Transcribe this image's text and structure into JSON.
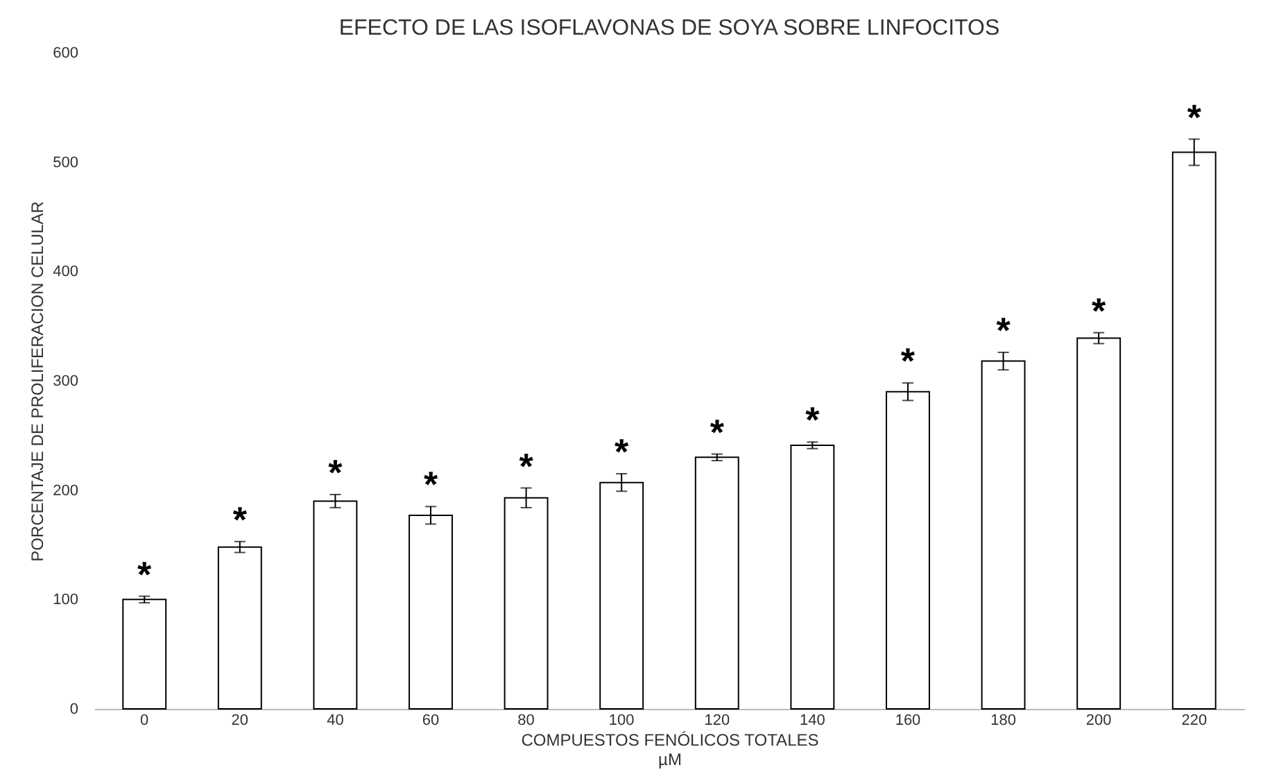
{
  "chart_data": {
    "type": "bar",
    "title": "EFECTO DE LAS ISOFLAVONAS DE SOYA SOBRE LINFOCITOS",
    "xlabel": "COMPUESTOS FENÓLICOS TOTALES\nµM",
    "ylabel": "PORCENTAJE DE PROLIFERACION  CELULAR",
    "categories": [
      "0",
      "20",
      "40",
      "60",
      "80",
      "100",
      "120",
      "140",
      "160",
      "180",
      "200",
      "220"
    ],
    "values": [
      100,
      148,
      190,
      177,
      193,
      207,
      230,
      241,
      290,
      318,
      339,
      509
    ],
    "errors": [
      3,
      5,
      6,
      8,
      9,
      8,
      3,
      3,
      8,
      8,
      5,
      12
    ],
    "color": "#ffffff",
    "ylim": [
      0,
      600
    ],
    "yticks": [
      0,
      100,
      200,
      300,
      400,
      500,
      600
    ],
    "grid": false,
    "annotations": [
      {
        "text": "*",
        "x": "0",
        "y": 103
      },
      {
        "text": "*",
        "x": "20",
        "y": 153
      },
      {
        "text": "*",
        "x": "40",
        "y": 196
      },
      {
        "text": "*",
        "x": "60",
        "y": 185
      },
      {
        "text": "*",
        "x": "80",
        "y": 202
      },
      {
        "text": "*",
        "x": "100",
        "y": 215
      },
      {
        "text": "*",
        "x": "120",
        "y": 233
      },
      {
        "text": "*",
        "x": "140",
        "y": 244
      },
      {
        "text": "*",
        "x": "160",
        "y": 298
      },
      {
        "text": "*",
        "x": "180",
        "y": 326
      },
      {
        "text": "*",
        "x": "200",
        "y": 344
      },
      {
        "text": "*",
        "x": "220",
        "y": 521
      }
    ]
  }
}
